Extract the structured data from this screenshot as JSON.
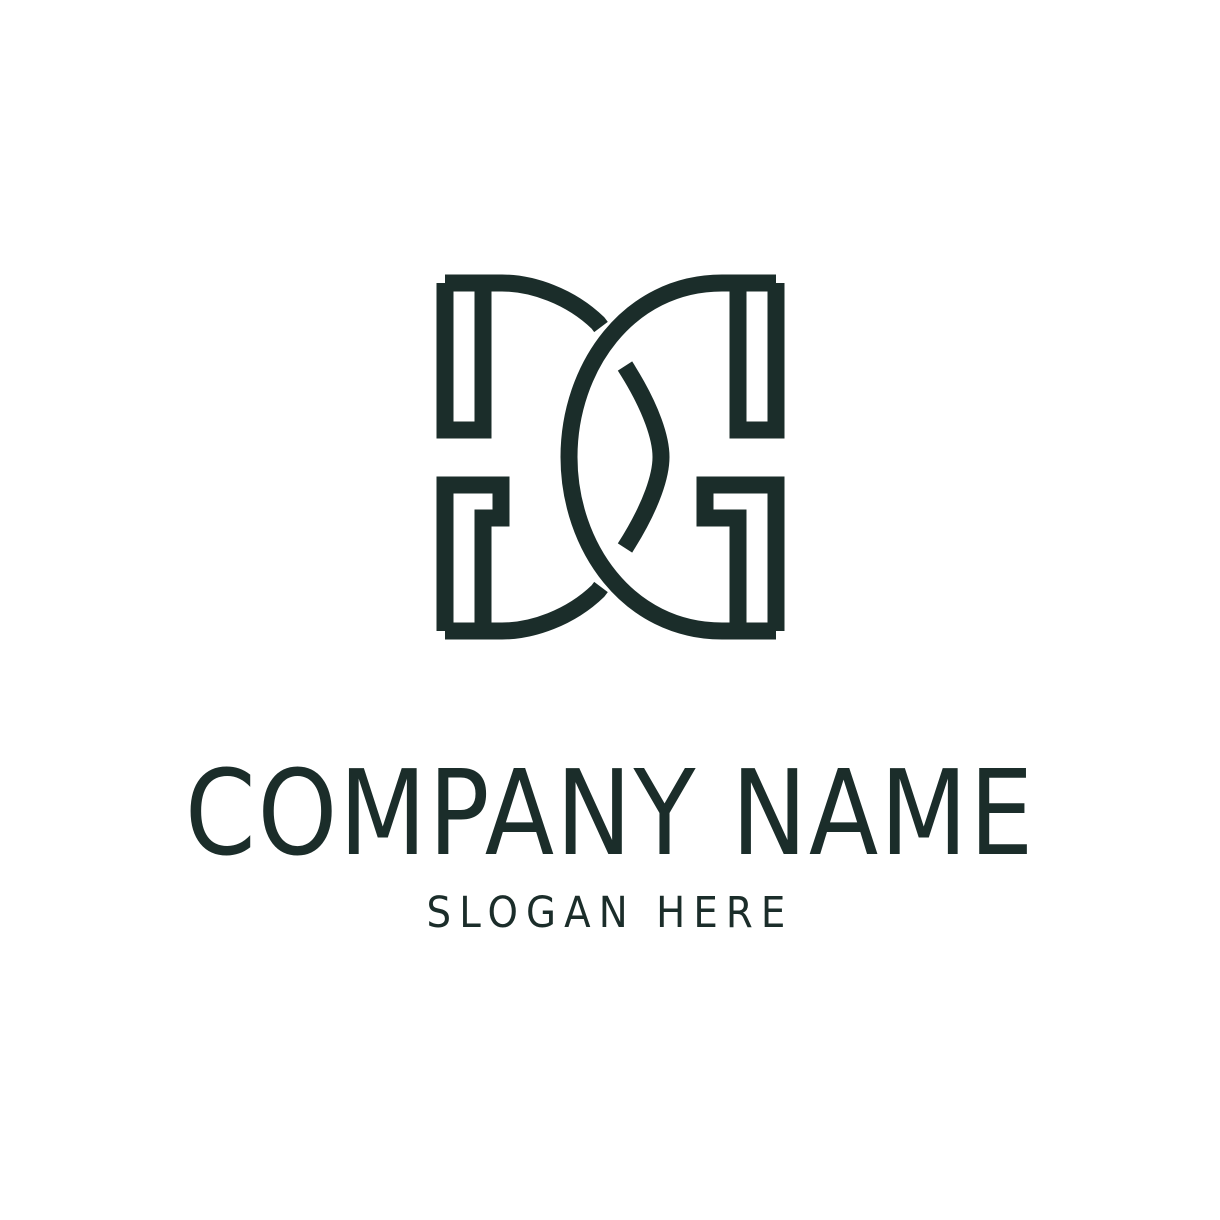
{
  "brand": {
    "company_name": "COMPANY NAME",
    "slogan": "SLOGAN HERE"
  },
  "logo": {
    "icon": "dg-monogram-icon",
    "color": "#1b2d2a"
  },
  "background_color": "#ffffff"
}
